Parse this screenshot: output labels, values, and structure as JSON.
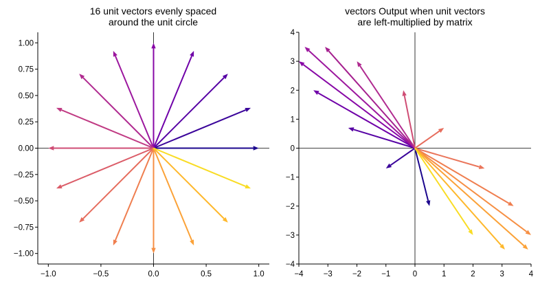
{
  "chart_data": [
    {
      "type": "quiver",
      "title_lines": [
        "16 unit vectors evenly spaced",
        "around the unit circle"
      ],
      "xlim": [
        -1.1,
        1.1
      ],
      "ylim": [
        -1.1,
        1.1
      ],
      "xticks": [
        -1.0,
        -0.5,
        0.0,
        0.5,
        1.0
      ],
      "xtick_labels": [
        "−1.0",
        "−0.5",
        "0.0",
        "0.5",
        "1.0"
      ],
      "yticks": [
        1.0,
        0.75,
        0.5,
        0.25,
        0.0,
        -0.25,
        -0.5,
        -0.75,
        -1.0
      ],
      "ytick_labels": [
        "1.00",
        "0.75",
        "0.50",
        "0.25",
        "0.00",
        "−0.25",
        "−0.50",
        "−0.75",
        "−1.00"
      ],
      "vectors": [
        {
          "x": 1.0,
          "y": 0.0,
          "color": "#1b068d"
        },
        {
          "x": 0.924,
          "y": 0.383,
          "color": "#3a049a"
        },
        {
          "x": 0.707,
          "y": 0.707,
          "color": "#5602a4"
        },
        {
          "x": 0.383,
          "y": 0.924,
          "color": "#6f00a8"
        },
        {
          "x": 0.0,
          "y": 1.0,
          "color": "#8707a6"
        },
        {
          "x": -0.383,
          "y": 0.924,
          "color": "#9c179e"
        },
        {
          "x": -0.707,
          "y": 0.707,
          "color": "#b02a90"
        },
        {
          "x": -0.924,
          "y": 0.383,
          "color": "#c03a83"
        },
        {
          "x": -1.0,
          "y": 0.0,
          "color": "#cf4c74"
        },
        {
          "x": -0.924,
          "y": -0.383,
          "color": "#db5c68"
        },
        {
          "x": -0.707,
          "y": -0.707,
          "color": "#e66c5c"
        },
        {
          "x": -0.383,
          "y": -0.924,
          "color": "#ef7e4f"
        },
        {
          "x": 0.0,
          "y": -1.0,
          "color": "#f68f44"
        },
        {
          "x": 0.383,
          "y": -0.924,
          "color": "#fba238"
        },
        {
          "x": 0.707,
          "y": -0.707,
          "color": "#feb82c"
        },
        {
          "x": 0.924,
          "y": -0.383,
          "color": "#f9dc24"
        }
      ]
    },
    {
      "type": "quiver",
      "title_lines": [
        "vectors Output when unit vectors",
        "are left-multiplied by matrix"
      ],
      "xlim": [
        -4,
        4
      ],
      "ylim": [
        -4,
        4
      ],
      "xticks": [
        -4,
        -3,
        -2,
        -1,
        0,
        1,
        2,
        3,
        4
      ],
      "xtick_labels": [
        "−4",
        "−3",
        "−2",
        "−1",
        "0",
        "1",
        "2",
        "3",
        "4"
      ],
      "yticks": [
        4,
        3,
        2,
        1,
        0,
        -1,
        -2,
        -3,
        -4
      ],
      "ytick_labels": [
        "4",
        "3",
        "2",
        "1",
        "0",
        "−1",
        "−2",
        "−3",
        "−4"
      ],
      "vectors": [
        {
          "x": 0.5,
          "y": -2.0,
          "color": "#1b068d"
        },
        {
          "x": -1.0,
          "y": -0.7,
          "color": "#3a049a"
        },
        {
          "x": -2.3,
          "y": 0.7,
          "color": "#5602a4"
        },
        {
          "x": -3.5,
          "y": 2.0,
          "color": "#6f00a8"
        },
        {
          "x": -4.0,
          "y": 3.0,
          "color": "#8707a6"
        },
        {
          "x": -3.8,
          "y": 3.5,
          "color": "#9c179e"
        },
        {
          "x": -3.1,
          "y": 3.5,
          "color": "#a5208f"
        },
        {
          "x": -2.0,
          "y": 3.0,
          "color": "#b02a90"
        },
        {
          "x": -0.4,
          "y": 2.0,
          "color": "#cf4c74"
        },
        {
          "x": 1.0,
          "y": 0.7,
          "color": "#e66c5c"
        },
        {
          "x": 2.4,
          "y": -0.7,
          "color": "#ea755a"
        },
        {
          "x": 3.4,
          "y": -2.0,
          "color": "#ef7e4f"
        },
        {
          "x": 4.0,
          "y": -3.0,
          "color": "#f68f44"
        },
        {
          "x": 3.9,
          "y": -3.5,
          "color": "#fba238"
        },
        {
          "x": 3.1,
          "y": -3.5,
          "color": "#feb82c"
        },
        {
          "x": 2.0,
          "y": -3.0,
          "color": "#f9dc24"
        }
      ]
    }
  ]
}
